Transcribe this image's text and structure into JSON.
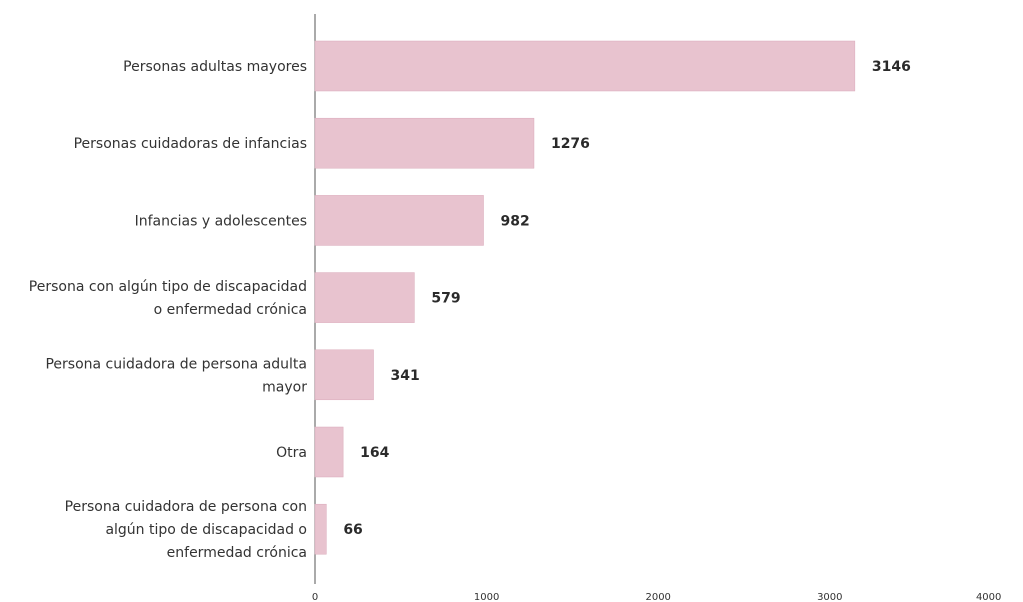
{
  "chart_data": {
    "type": "bar",
    "orientation": "horizontal",
    "categories": [
      [
        "Personas adultas mayores"
      ],
      [
        "Personas cuidadoras de infancias"
      ],
      [
        "Infancias y adolescentes"
      ],
      [
        "Persona con algún tipo de discapacidad",
        "o enfermedad crónica"
      ],
      [
        "Persona cuidadora de persona adulta",
        "mayor"
      ],
      [
        "Otra"
      ],
      [
        "Persona cuidadora de persona con",
        "algún tipo de discapacidad o",
        "enfermedad crónica"
      ]
    ],
    "values": [
      3146,
      1276,
      982,
      579,
      341,
      164,
      66
    ],
    "value_labels": [
      "3146",
      "1276",
      "982",
      "579",
      "341",
      "164",
      "66"
    ],
    "xlim": [
      0,
      4000
    ],
    "x_ticks": [
      "0",
      "1000",
      "2000",
      "3000",
      "4000"
    ],
    "title": "",
    "xlabel": "",
    "ylabel": "",
    "grid": false,
    "legend": "none",
    "bar_color": "#e8c3cf",
    "bar_edge_color": "#d9a9b9",
    "axis_color": "#555555"
  }
}
